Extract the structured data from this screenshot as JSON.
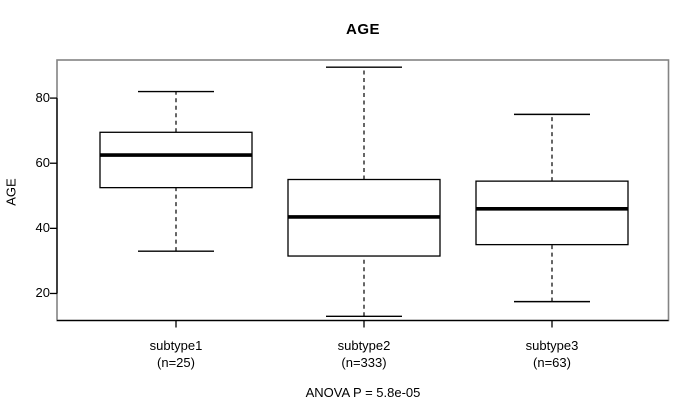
{
  "window": {
    "background_color": "#ffffff",
    "frame_color": "#848484",
    "ink_color": "#000000"
  },
  "chart_data": {
    "type": "boxplot",
    "title": "AGE",
    "ylabel": "AGE",
    "xlabel": "",
    "annotation": "ANOVA P = 5.8e-05",
    "yticks": [
      20,
      40,
      60,
      80
    ],
    "ylim": [
      11.7,
      91.7
    ],
    "grid": false,
    "categories": [
      "subtype1",
      "subtype2",
      "subtype3"
    ],
    "counts": [
      25,
      333,
      63
    ],
    "count_labels": [
      "(n=25)",
      "(n=333)",
      "(n=63)"
    ],
    "series": [
      {
        "name": "subtype1",
        "whisker_low": 33,
        "q1": 52.5,
        "median": 62.5,
        "q3": 69.5,
        "whisker_high": 82
      },
      {
        "name": "subtype2",
        "whisker_low": 13,
        "q1": 31.5,
        "median": 43.5,
        "q3": 55,
        "whisker_high": 89.5
      },
      {
        "name": "subtype3",
        "whisker_low": 17.5,
        "q1": 35,
        "median": 46,
        "q3": 54.5,
        "whisker_high": 75
      }
    ]
  }
}
